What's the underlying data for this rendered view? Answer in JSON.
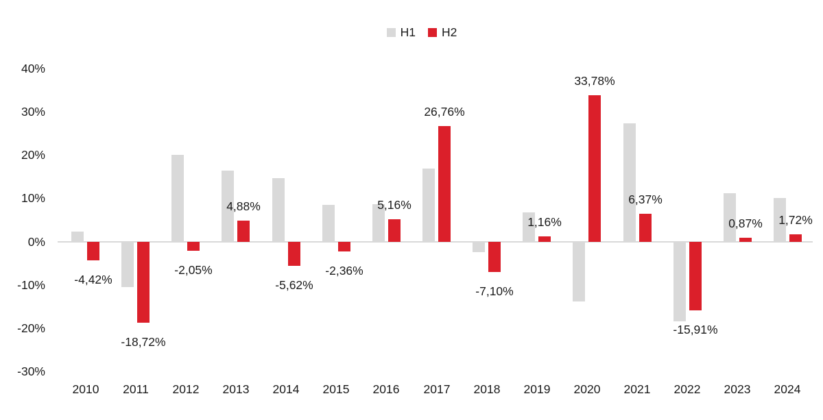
{
  "chart_data": {
    "type": "bar",
    "title": "",
    "categories": [
      "2010",
      "2011",
      "2012",
      "2013",
      "2014",
      "2015",
      "2016",
      "2017",
      "2018",
      "2019",
      "2020",
      "2021",
      "2022",
      "2023",
      "2024"
    ],
    "series": [
      {
        "name": "H1",
        "color": "#D9D9D9",
        "values": [
          2.3,
          -10.6,
          20.1,
          16.4,
          14.6,
          8.5,
          8.6,
          16.8,
          -2.4,
          6.8,
          -13.9,
          27.4,
          -18.4,
          11.2,
          10.0
        ],
        "labels_shown": false
      },
      {
        "name": "H2",
        "color": "#DB1F2A",
        "values": [
          -4.42,
          -18.72,
          -2.05,
          4.88,
          -5.62,
          -2.36,
          5.16,
          26.76,
          -7.1,
          1.16,
          33.78,
          6.37,
          -15.91,
          0.87,
          1.72
        ],
        "labels_shown": true,
        "labels": [
          "-4,42%",
          "-18,72%",
          "-2,05%",
          "4,88%",
          "-5,62%",
          "-2,36%",
          "5,16%",
          "26,76%",
          "-7,10%",
          "1,16%",
          "33,78%",
          "6,37%",
          "-15,91%",
          "0,87%",
          "1,72%"
        ]
      }
    ],
    "y_ticks": [
      {
        "label": "40%",
        "value": 40
      },
      {
        "label": "30%",
        "value": 30
      },
      {
        "label": "20%",
        "value": 20
      },
      {
        "label": "10%",
        "value": 10
      },
      {
        "label": "0%",
        "value": 0
      },
      {
        "label": "-10%",
        "value": -10
      },
      {
        "label": "-20%",
        "value": -20
      },
      {
        "label": "-30%",
        "value": -30
      }
    ],
    "ylim": [
      -30,
      40
    ],
    "grid": false,
    "legend_position": "top-center",
    "axis_line_color": "#D9D9D9",
    "text_color": "#1a1a1a"
  }
}
